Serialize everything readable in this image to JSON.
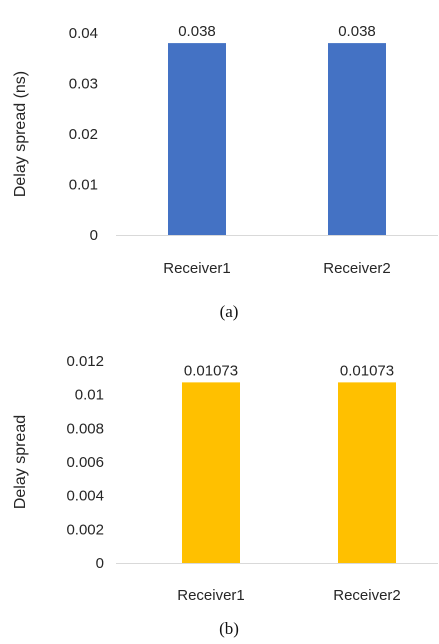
{
  "chart_data": [
    {
      "type": "bar",
      "caption": "(a)",
      "categories": [
        "Receiver1",
        "Receiver2"
      ],
      "values": [
        0.038,
        0.038
      ],
      "data_labels": [
        "0.038",
        "0.038"
      ],
      "xlabel": "",
      "ylabel": "Delay spread (ns)",
      "ylim": [
        0,
        0.04
      ],
      "yticks": [
        0,
        0.01,
        0.02,
        0.03,
        0.04
      ],
      "ytick_labels": [
        "0",
        "0.01",
        "0.02",
        "0.03",
        "0.04"
      ],
      "color": "#4472C4",
      "grid": false,
      "legend": "none"
    },
    {
      "type": "bar",
      "caption": "(b)",
      "categories": [
        "Receiver1",
        "Receiver2"
      ],
      "values": [
        0.01073,
        0.01073
      ],
      "data_labels": [
        "0.01073",
        "0.01073"
      ],
      "xlabel": "",
      "ylabel": "Delay spread",
      "ylim": [
        0,
        0.012
      ],
      "yticks": [
        0,
        0.002,
        0.004,
        0.006,
        0.008,
        0.01,
        0.012
      ],
      "ytick_labels": [
        "0",
        "0.002",
        "0.004",
        "0.006",
        "0.008",
        "0.01",
        "0.012"
      ],
      "color": "#FFC000",
      "grid": false,
      "legend": "none"
    }
  ]
}
